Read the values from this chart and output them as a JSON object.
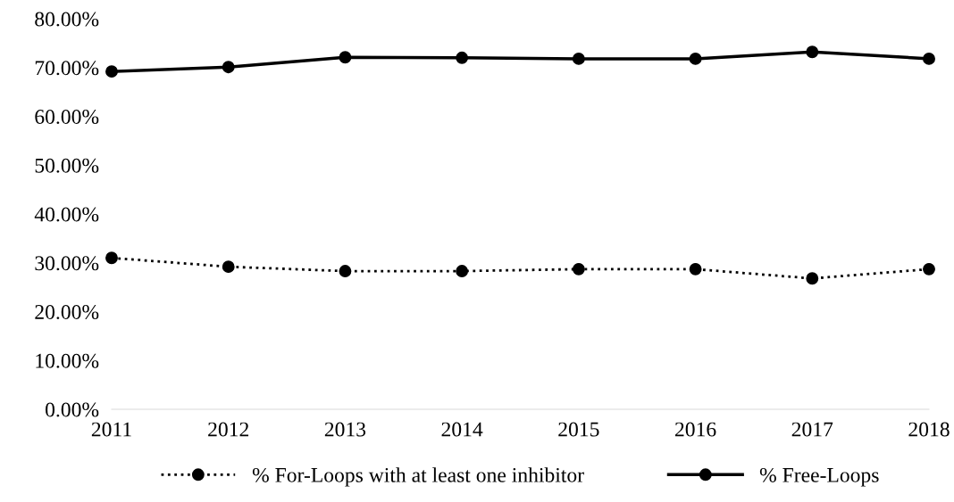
{
  "chart_data": {
    "type": "line",
    "categories": [
      "2011",
      "2012",
      "2013",
      "2014",
      "2015",
      "2016",
      "2017",
      "2018"
    ],
    "series": [
      {
        "name": "% For-Loops with at least one inhibitor",
        "color": "#000000",
        "line_style": "dotted",
        "marker": "circle",
        "values": [
          31.0,
          29.2,
          28.3,
          28.3,
          28.7,
          28.7,
          26.8,
          28.7
        ]
      },
      {
        "name": "% Free-Loops",
        "color": "#000000",
        "line_style": "solid",
        "marker": "circle",
        "values": [
          69.2,
          70.1,
          72.1,
          72.0,
          71.8,
          71.8,
          73.2,
          71.8
        ]
      }
    ],
    "ylim": [
      0,
      80
    ],
    "yticks": [
      {
        "value": 0,
        "label": "0.00%"
      },
      {
        "value": 10,
        "label": "10.00%"
      },
      {
        "value": 20,
        "label": "20.00%"
      },
      {
        "value": 30,
        "label": "30.00%"
      },
      {
        "value": 40,
        "label": "40.00%"
      },
      {
        "value": 50,
        "label": "50.00%"
      },
      {
        "value": 60,
        "label": "60.00%"
      },
      {
        "value": 70,
        "label": "70.00%"
      },
      {
        "value": 80,
        "label": "80.00%"
      }
    ],
    "grid": false,
    "legend": "bottom"
  }
}
